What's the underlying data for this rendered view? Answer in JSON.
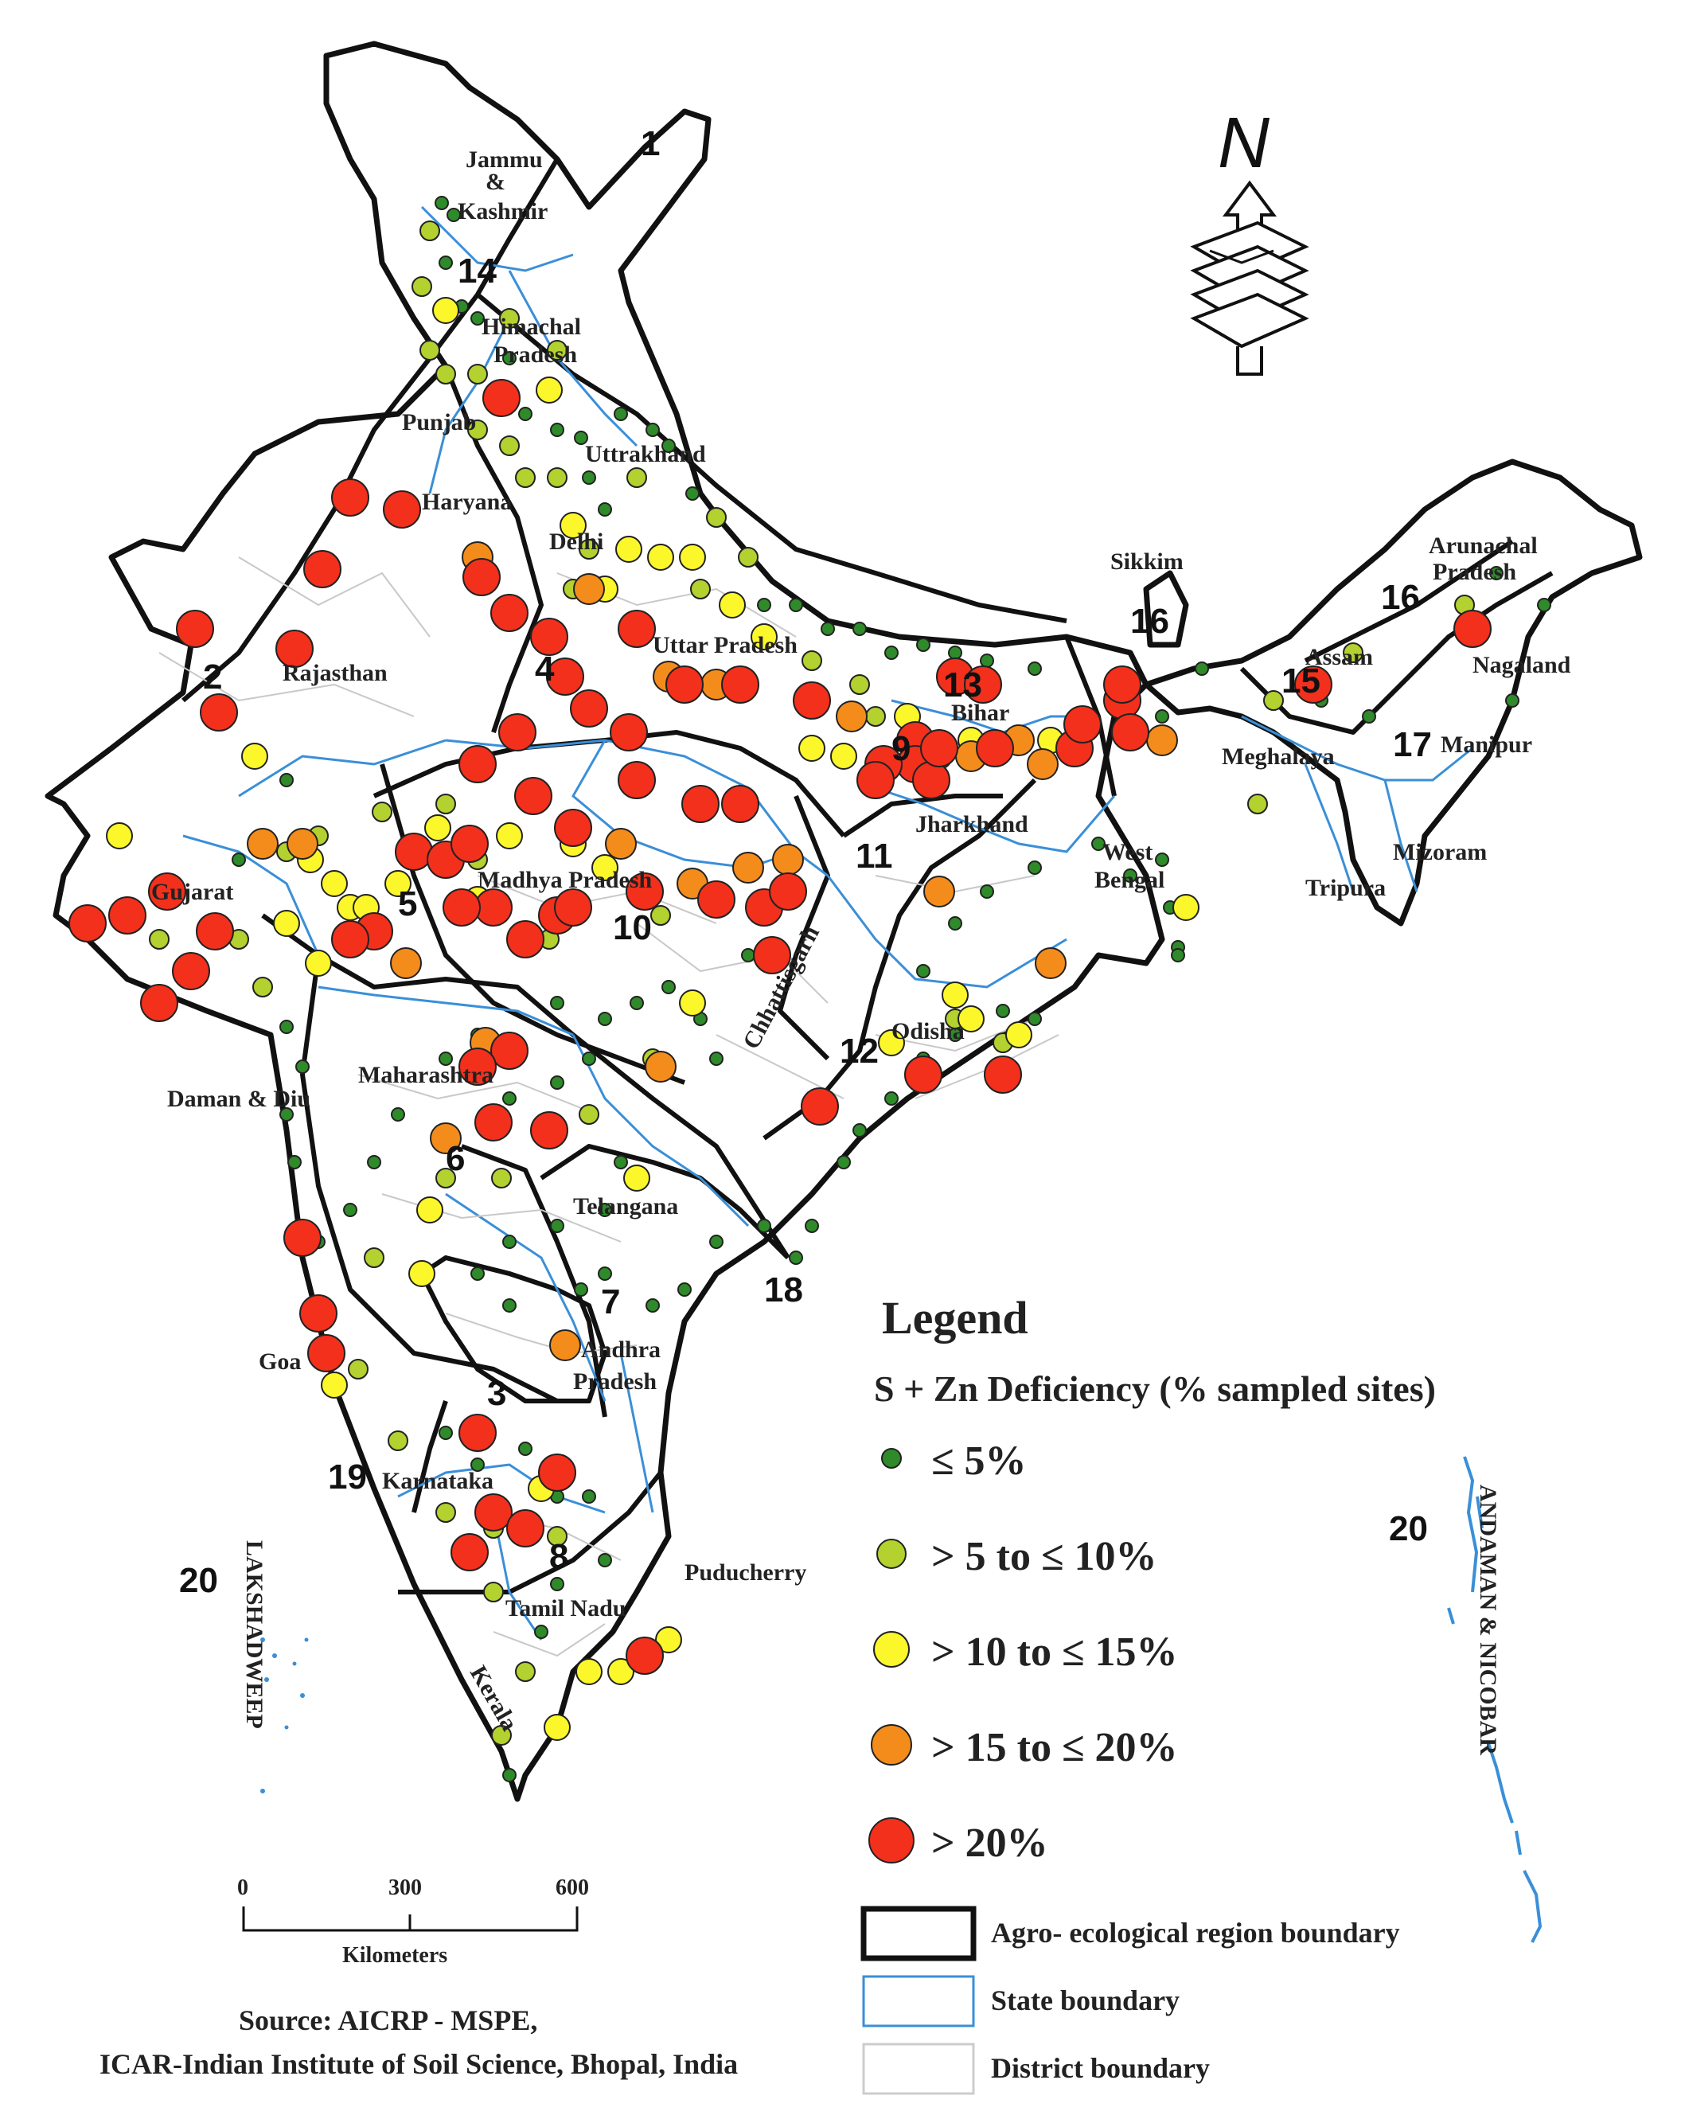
{
  "map": {
    "legend_title": "Legend",
    "legend_subtitle": "S + Zn  Deficiency (% sampled sites)",
    "classes": [
      {
        "label": "≤ 5%",
        "color": "#2f8a2a"
      },
      {
        "label": "> 5 to ≤ 10%",
        "color": "#b3d12f"
      },
      {
        "label": "> 10 to ≤ 15%",
        "color": "#fbf72a"
      },
      {
        "label": "> 15 to ≤ 20%",
        "color": "#f48c1c"
      },
      {
        "label": "> 20%",
        "color": "#f3301c"
      }
    ],
    "boundaries": [
      {
        "label": "Agro- ecological region boundary",
        "color": "#111111"
      },
      {
        "label": "State boundary",
        "color": "#3a8fd8"
      },
      {
        "label": "District boundary",
        "color": "#cccccc"
      }
    ],
    "north": "N",
    "scale": {
      "ticks": [
        "0",
        "300",
        "600"
      ],
      "unit": "Kilometers"
    },
    "source_line1": "Source: AICRP - MSPE,",
    "source_line2": "ICAR-Indian Institute of Soil Science, Bhopal, India",
    "states": [
      "Jammu",
      "&",
      "Kashmir",
      "Himachal",
      "Pradesh",
      "Punjab",
      "Uttrakhand",
      "Haryana",
      "Delhi",
      "Rajasthan",
      "Uttar Pradesh",
      "Bihar",
      "Sikkim",
      "Arunachal",
      "Pradesh",
      "Assam",
      "Nagaland",
      "Meghalaya",
      "Manipur",
      "Mizoram",
      "Tripura",
      "West",
      "Bengal",
      "Jharkhand",
      "Gujarat",
      "Madhya Pradesh",
      "Chhattisgarh",
      "Odisha",
      "Daman & Diu",
      "Maharashtra",
      "Telangana",
      "Andhra",
      "Pradesh",
      "Goa",
      "Karnataka",
      "Tamil Nadu",
      "Puducherry",
      "Kerala",
      "LAKSHADWEEP",
      "ANDAMAN & NICOBAR"
    ],
    "regions": [
      "1",
      "2",
      "3",
      "4",
      "5",
      "6",
      "7",
      "8",
      "9",
      "10",
      "11",
      "12",
      "13",
      "14",
      "15",
      "16",
      "16",
      "17",
      "18",
      "19",
      "20",
      "20"
    ]
  }
}
